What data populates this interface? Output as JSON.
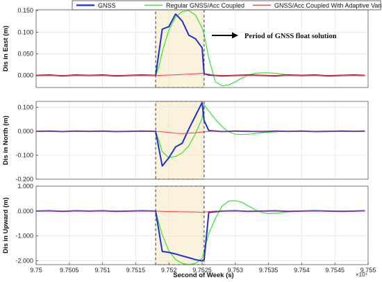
{
  "chart_data": {
    "type": "line",
    "xlabel": "Second of Week (s)",
    "x_multiplier": "×10⁴",
    "x_ticks": [
      "9.75",
      "9.7505",
      "9.751",
      "9.7515",
      "9.752",
      "9.7525",
      "9.753",
      "9.7535",
      "9.754",
      "9.7545",
      "9.755"
    ],
    "xlim": [
      97500,
      97550
    ],
    "legend": {
      "placement": "top",
      "entries": [
        {
          "label": "GNSS",
          "color": "#1a2fd6"
        },
        {
          "label": "Regular GNSS/Acc Coupled",
          "color": "#2ee62e"
        },
        {
          "label": "GNSS/Acc Coupled With Adaptive Variance",
          "color": "#ff3b3b"
        }
      ]
    },
    "annotation": {
      "text": "Period of GNSS float solution",
      "shaded_x_range": [
        97518,
        97525.3
      ],
      "shade_color": "#fbf2dc"
    },
    "panels": [
      {
        "ylabel": "Dis in East (m)",
        "ylim": [
          -0.028,
          0.152
        ],
        "y_ticks": [
          0.0,
          0.05,
          0.1,
          0.15
        ],
        "y_tick_labels": [
          "0.000",
          "0.050",
          "0.100",
          "0.150"
        ],
        "series": [
          {
            "name": "GNSS",
            "x": [
              97500,
              97502,
              97504,
              97506,
              97508,
              97510,
              97512,
              97514,
              97516,
              97518,
              97519,
              97520,
              97521,
              97522,
              97523,
              97524,
              97525,
              97525.3,
              97526,
              97528,
              97530,
              97532,
              97534,
              97536,
              97538,
              97540,
              97542,
              97544,
              97546,
              97548,
              97549.5
            ],
            "y": [
              0.0,
              0.001,
              -0.001,
              0.001,
              0.0,
              0.001,
              -0.001,
              0.0,
              0.001,
              0.0,
              0.107,
              0.113,
              0.142,
              0.126,
              0.093,
              0.085,
              0.064,
              0.004,
              0.001,
              -0.001,
              0.0,
              0.001,
              0.0,
              -0.001,
              0.001,
              0.0,
              0.001,
              -0.001,
              0.0,
              0.001,
              0.0
            ]
          },
          {
            "name": "Regular GNSS/Acc Coupled",
            "x": [
              97500,
              97510,
              97518,
              97518.5,
              97519,
              97520,
              97521,
              97522,
              97523,
              97524,
              97525,
              97525.3,
              97526,
              97527,
              97528,
              97529,
              97530,
              97531,
              97532,
              97533,
              97534,
              97535,
              97536,
              97537,
              97538,
              97540,
              97542,
              97544,
              97546,
              97548,
              97549.5
            ],
            "y": [
              0.0,
              0.0,
              0.0,
              0.02,
              0.055,
              0.105,
              0.135,
              0.148,
              0.15,
              0.14,
              0.11,
              0.095,
              0.04,
              -0.015,
              -0.024,
              -0.022,
              -0.015,
              -0.006,
              0.001,
              0.005,
              0.006,
              0.006,
              0.005,
              0.003,
              0.001,
              -0.001,
              0.0,
              0.0,
              0.001,
              0.0,
              0.0
            ]
          },
          {
            "name": "GNSS/Acc Coupled With Adaptive Variance",
            "x": [
              97500,
              97510,
              97518,
              97520,
              97522,
              97524,
              97525,
              97526,
              97527,
              97530,
              97540,
              97549.5
            ],
            "y": [
              0.0,
              0.0,
              0.0,
              0.001,
              0.002,
              0.004,
              0.005,
              0.003,
              0.0,
              0.0,
              0.0,
              0.0
            ]
          }
        ]
      },
      {
        "ylabel": "Dis in North (m)",
        "ylim": [
          -0.2,
          0.125
        ],
        "y_ticks": [
          -0.2,
          -0.1,
          0.0,
          0.1
        ],
        "y_tick_labels": [
          "-0.200",
          "-0.100",
          "0.000",
          "0.100"
        ],
        "series": [
          {
            "name": "GNSS",
            "x": [
              97500,
              97502,
              97504,
              97506,
              97508,
              97510,
              97512,
              97514,
              97516,
              97518,
              97519,
              97520,
              97521,
              97522,
              97523,
              97524,
              97525,
              97525.3,
              97526,
              97528,
              97530,
              97532,
              97534,
              97536,
              97538,
              97540,
              97542,
              97544,
              97546,
              97548,
              97549.5
            ],
            "y": [
              0.0,
              0.001,
              -0.001,
              0.001,
              0.0,
              0.001,
              -0.001,
              0.0,
              0.001,
              0.0,
              -0.145,
              -0.11,
              -0.065,
              -0.05,
              0.01,
              0.065,
              0.12,
              0.045,
              0.003,
              -0.001,
              0.001,
              0.0,
              -0.001,
              0.001,
              0.0,
              0.001,
              -0.001,
              0.0,
              0.001,
              0.0,
              0.001
            ]
          },
          {
            "name": "Regular GNSS/Acc Coupled",
            "x": [
              97500,
              97510,
              97518,
              97518.5,
              97519,
              97520,
              97521,
              97522,
              97523,
              97524,
              97525,
              97525.3,
              97526,
              97527,
              97528,
              97529,
              97530,
              97531,
              97532,
              97533,
              97534,
              97535,
              97536,
              97537,
              97538,
              97540,
              97542,
              97544,
              97546,
              97548,
              97549.5
            ],
            "y": [
              0.0,
              0.0,
              0.0,
              -0.04,
              -0.085,
              -0.11,
              -0.105,
              -0.09,
              -0.06,
              -0.01,
              0.055,
              0.11,
              0.085,
              0.05,
              0.02,
              -0.002,
              -0.012,
              -0.013,
              -0.012,
              -0.009,
              -0.006,
              -0.004,
              -0.002,
              -0.001,
              0.0,
              0.0,
              0.0,
              0.001,
              0.0,
              0.0,
              0.0
            ]
          },
          {
            "name": "GNSS/Acc Coupled With Adaptive Variance",
            "x": [
              97500,
              97510,
              97518,
              97519,
              97520,
              97521,
              97522,
              97523,
              97524,
              97525,
              97526,
              97527,
              97530,
              97540,
              97549.5
            ],
            "y": [
              0.0,
              0.0,
              0.0,
              -0.002,
              -0.005,
              -0.008,
              -0.009,
              -0.008,
              -0.006,
              -0.003,
              0.0,
              0.0,
              0.0,
              0.0,
              0.0
            ]
          }
        ]
      },
      {
        "ylabel": "Dis in Upward (m)",
        "ylim": [
          -2.15,
          1.0
        ],
        "y_ticks": [
          -2.0,
          -1.0,
          0.0,
          1.0
        ],
        "y_tick_labels": [
          "-2.000",
          "-1.000",
          "0.000",
          "1.000"
        ],
        "series": [
          {
            "name": "GNSS",
            "x": [
              97500,
              97502,
              97504,
              97506,
              97508,
              97510,
              97512,
              97514,
              97516,
              97518,
              97519,
              97520,
              97521,
              97522,
              97523,
              97524,
              97525,
              97525.3,
              97526,
              97528,
              97530,
              97532,
              97534,
              97536,
              97538,
              97540,
              97542,
              97544,
              97546,
              97548,
              97549.5
            ],
            "y": [
              0.0,
              0.01,
              -0.01,
              0.01,
              0.0,
              0.01,
              -0.01,
              0.0,
              0.01,
              0.0,
              -1.62,
              -1.66,
              -1.72,
              -1.8,
              -1.87,
              -1.95,
              -2.0,
              -1.95,
              -0.05,
              0.0,
              0.01,
              -0.01,
              0.0,
              0.01,
              -0.01,
              0.0,
              0.01,
              0.0,
              -0.01,
              0.0,
              0.01
            ]
          },
          {
            "name": "Regular GNSS/Acc Coupled",
            "x": [
              97500,
              97510,
              97518,
              97518.5,
              97519,
              97520,
              97521,
              97522,
              97523,
              97524,
              97525,
              97525.3,
              97526,
              97527,
              97528,
              97529,
              97530,
              97531,
              97532,
              97533,
              97534,
              97535,
              97536,
              97537,
              97538,
              97540,
              97542,
              97544,
              97546,
              97548,
              97549.5
            ],
            "y": [
              0.0,
              0.0,
              0.0,
              -0.5,
              -0.95,
              -1.6,
              -1.95,
              -2.1,
              -2.15,
              -2.1,
              -1.9,
              -1.6,
              -0.9,
              -0.3,
              0.2,
              0.4,
              0.42,
              0.35,
              0.2,
              0.05,
              -0.06,
              -0.1,
              -0.09,
              -0.06,
              -0.03,
              0.0,
              0.01,
              0.0,
              0.0,
              0.0,
              0.0
            ]
          },
          {
            "name": "GNSS/Acc Coupled With Adaptive Variance",
            "x": [
              97500,
              97510,
              97518,
              97520,
              97522,
              97524,
              97525,
              97526,
              97527,
              97530,
              97540,
              97549.5
            ],
            "y": [
              0.0,
              0.0,
              0.0,
              -0.02,
              -0.03,
              -0.04,
              -0.05,
              -0.02,
              0.0,
              0.0,
              0.0,
              0.0
            ]
          }
        ]
      }
    ]
  }
}
